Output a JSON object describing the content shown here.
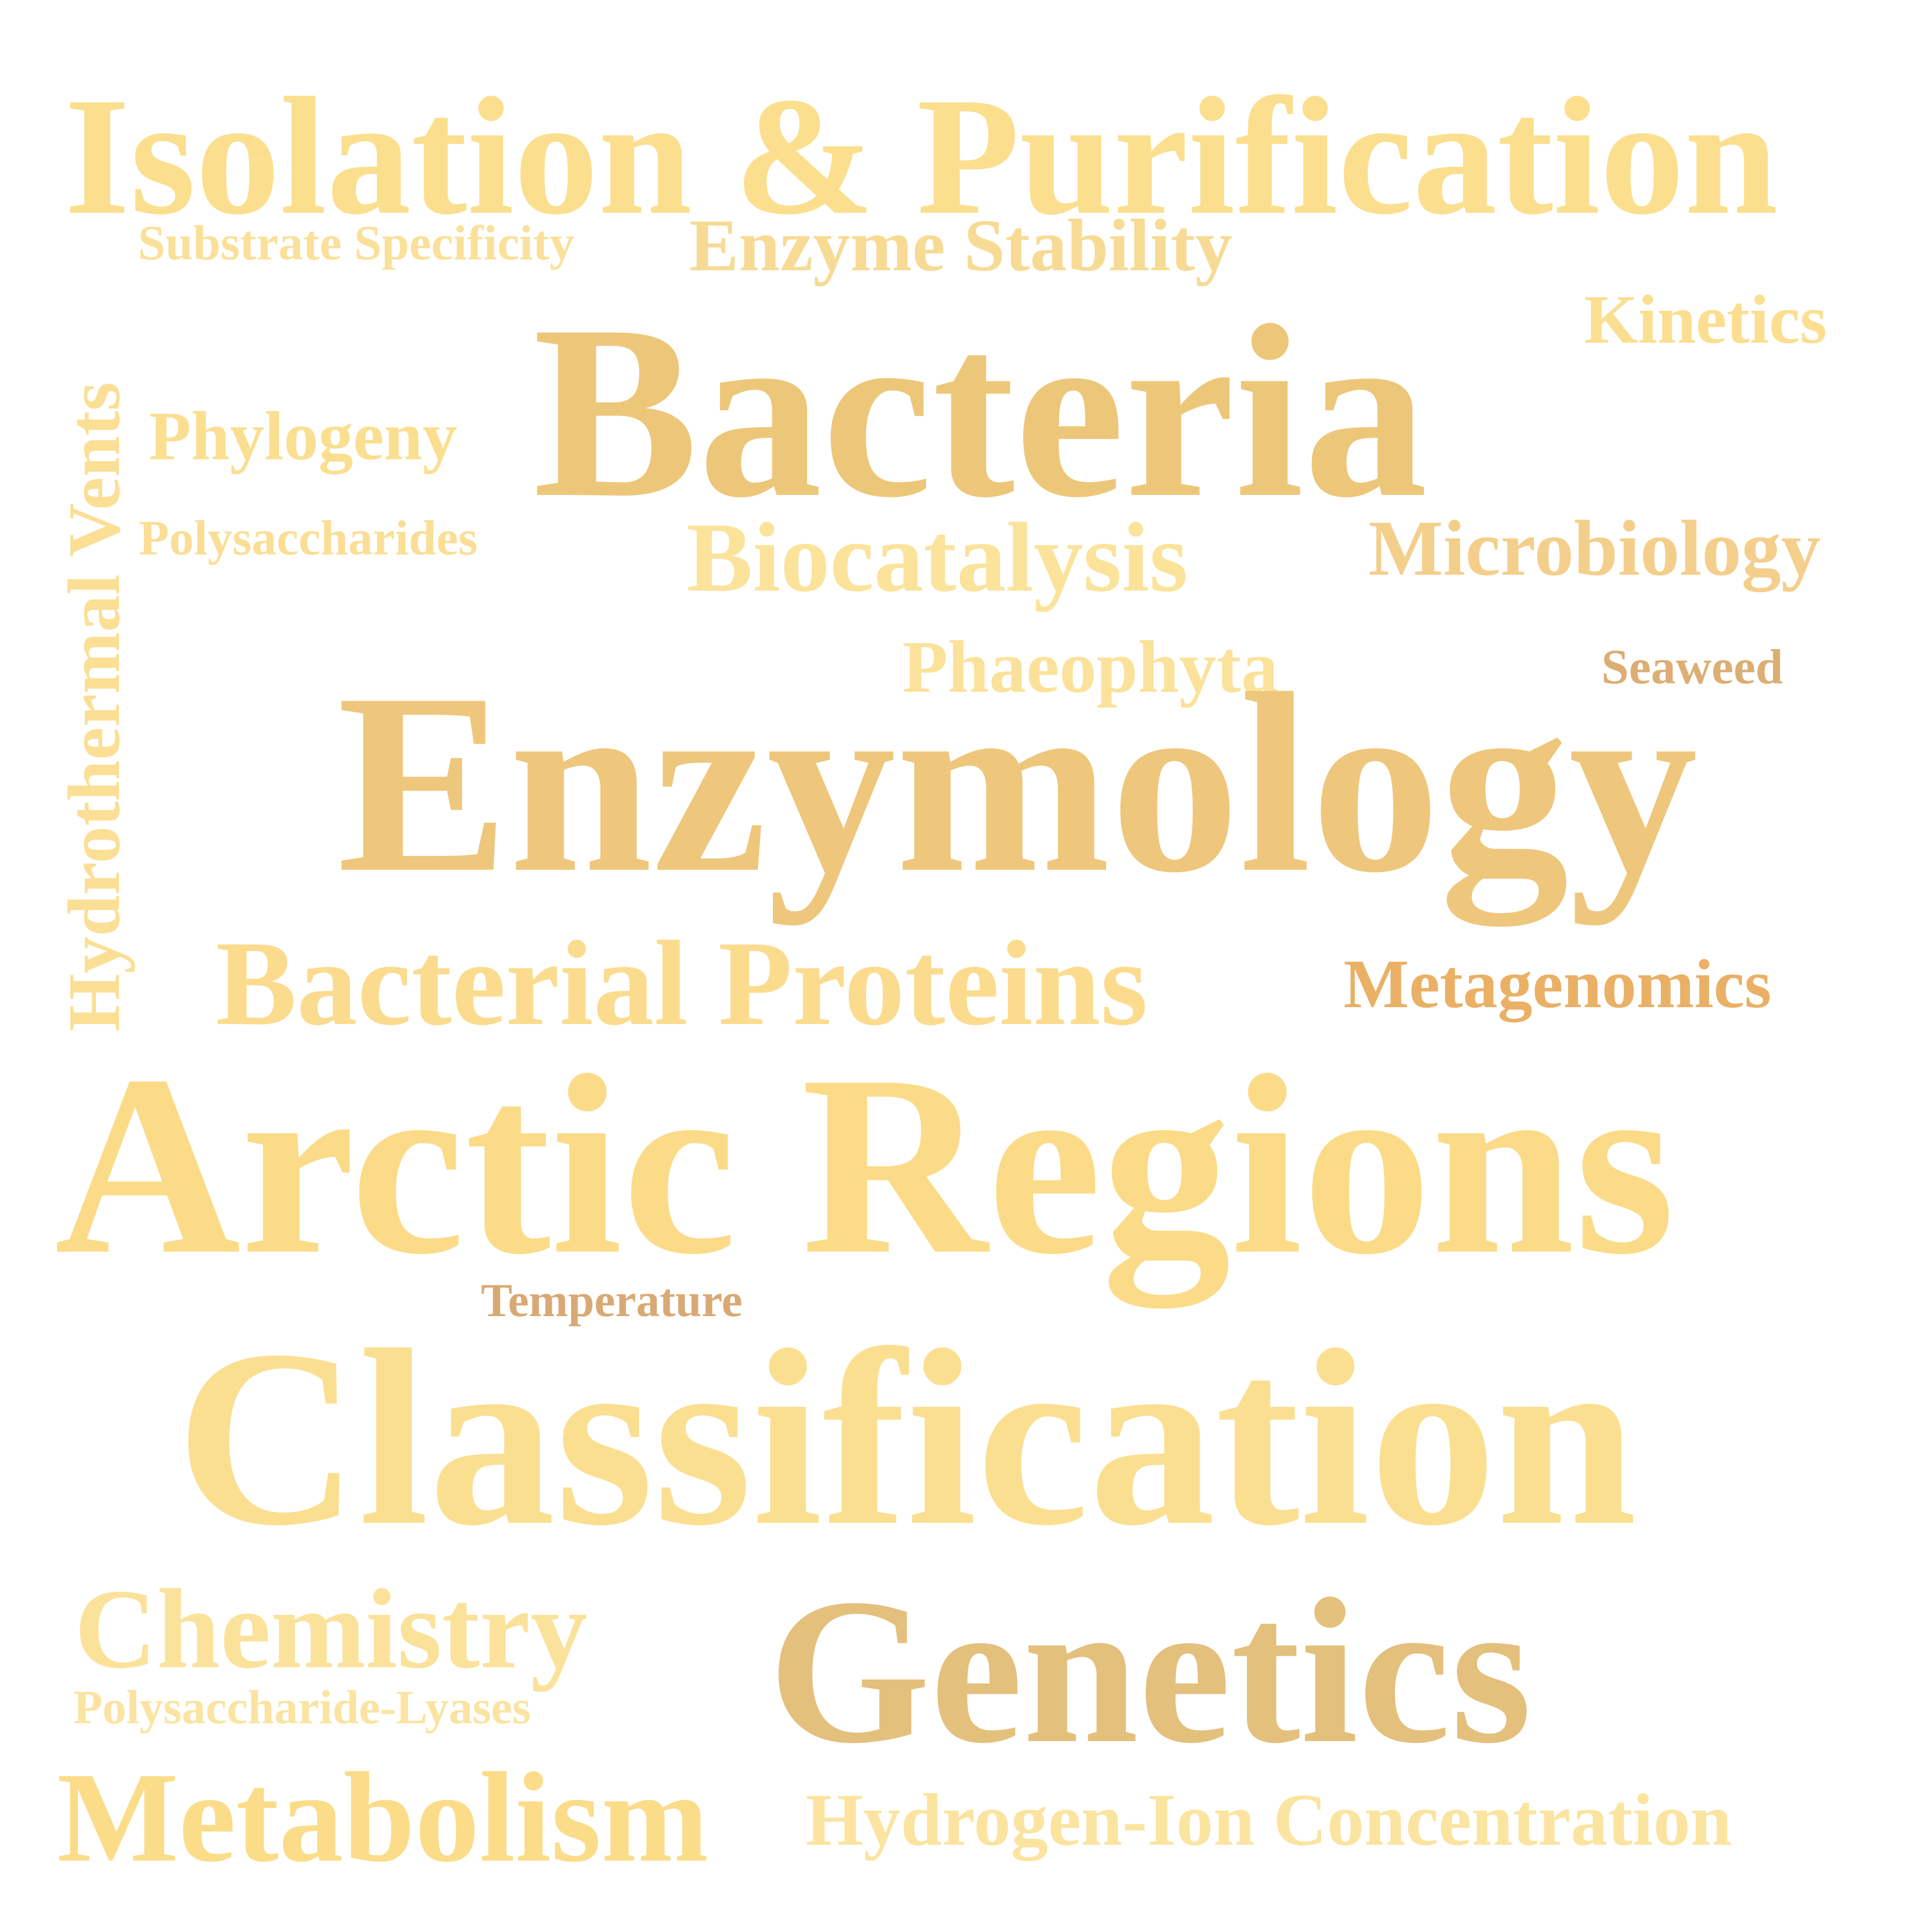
{
  "words": [
    {
      "text": "Isolation & Purification",
      "color": "#fbdf8e"
    },
    {
      "text": "Substrate Specificity",
      "color": "#fbe09a"
    },
    {
      "text": "Enzyme Stability",
      "color": "#f7db95"
    },
    {
      "text": "Kinetics",
      "color": "#fbde90"
    },
    {
      "text": "Phylogeny",
      "color": "#fbdf90"
    },
    {
      "text": "Bacteria",
      "color": "#edc779"
    },
    {
      "text": "Polysaccharides",
      "color": "#fbde95"
    },
    {
      "text": "Biocatalysis",
      "color": "#fbe39b"
    },
    {
      "text": "Microbiology",
      "color": "#f4cf8c"
    },
    {
      "text": "Phaeophyta",
      "color": "#fbe29b"
    },
    {
      "text": "Seaweed",
      "color": "#dcae74"
    },
    {
      "text": "Enzymology",
      "color": "#eec77c"
    },
    {
      "text": "Bacterial Proteins",
      "color": "#fbdb8e"
    },
    {
      "text": "Metagenomics",
      "color": "#eab066"
    },
    {
      "text": "Arctic Regions",
      "color": "#fbdb88"
    },
    {
      "text": "Temperature",
      "color": "#d9a975"
    },
    {
      "text": "Classification",
      "color": "#fbdf91"
    },
    {
      "text": "Chemistry",
      "color": "#fbe29b"
    },
    {
      "text": "Polysaccharide-Lyases",
      "color": "#fbe4a1"
    },
    {
      "text": "Genetics",
      "color": "#e4c07d"
    },
    {
      "text": "Metabolism",
      "color": "#fbdc89"
    },
    {
      "text": "Hydrogen-Ion Concentration",
      "color": "#fbe4a0"
    },
    {
      "text": "Hydrothermal Vents",
      "color": "#fbdf95"
    }
  ]
}
